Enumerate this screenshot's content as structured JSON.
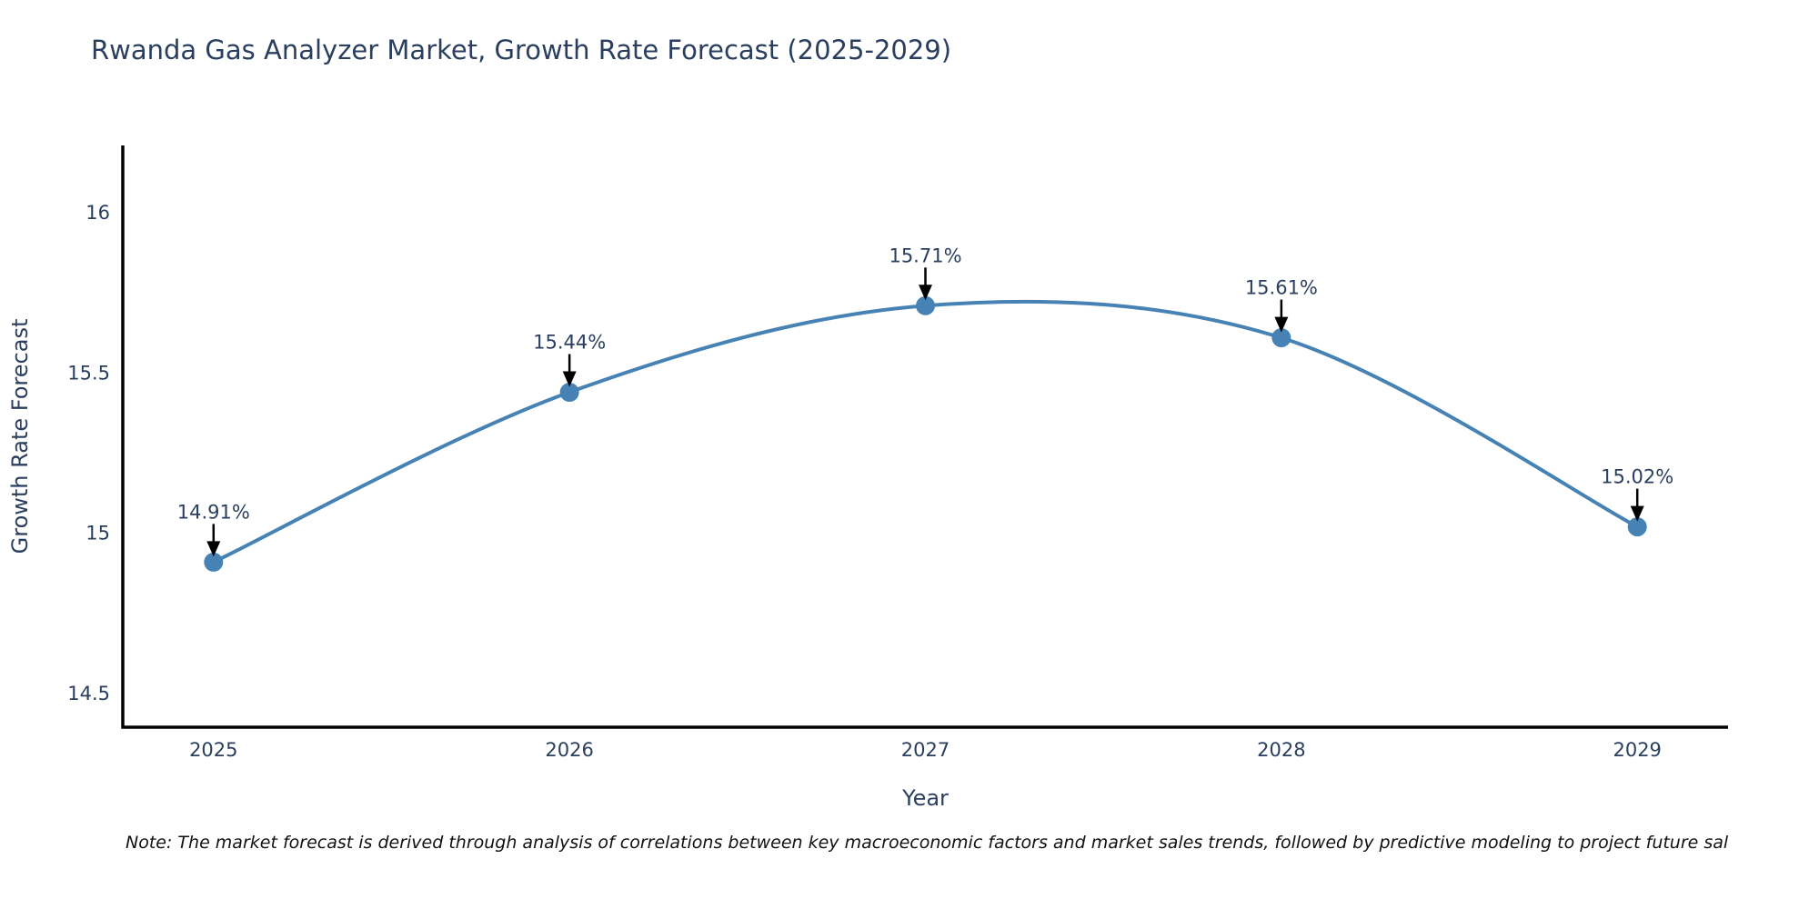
{
  "title": "Rwanda Gas Analyzer Market, Growth Rate Forecast (2025-2029)",
  "note": "Note: The market forecast is derived through analysis of correlations between key macroeconomic factors and market sales trends, followed by predictive modeling to project future sal",
  "colors": {
    "line": "#4682B4",
    "marker": "#4682B4",
    "axis": "#000000",
    "title_text": "#2a3f5f",
    "tick_text": "#2a3f5f",
    "annotation_text": "#2a3f5f",
    "arrow": "#000000",
    "note_text": "#111111",
    "background": "#ffffff"
  },
  "chart_data": {
    "type": "line",
    "x": [
      2025,
      2026,
      2027,
      2028,
      2029
    ],
    "values": [
      14.91,
      15.44,
      15.71,
      15.61,
      15.02
    ],
    "point_labels": [
      "14.91%",
      "15.44%",
      "15.71%",
      "15.61%",
      "15.02%"
    ],
    "title": "Rwanda Gas Analyzer Market, Growth Rate Forecast (2025-2029)",
    "xlabel": "Year",
    "ylabel": "Growth Rate Forecast",
    "xtick_labels": [
      "2025",
      "2026",
      "2027",
      "2028",
      "2029"
    ],
    "ytick_values": [
      14.5,
      15,
      15.5,
      16
    ],
    "ytick_labels": [
      "14.5",
      "15",
      "15.5",
      "16"
    ],
    "xlim": [
      2024.745,
      2029.255
    ],
    "ylim": [
      14.395,
      16.21
    ],
    "grid": false,
    "legend": "none",
    "line_shape": "spline",
    "markers": true,
    "annotations": "label-with-down-arrow"
  }
}
